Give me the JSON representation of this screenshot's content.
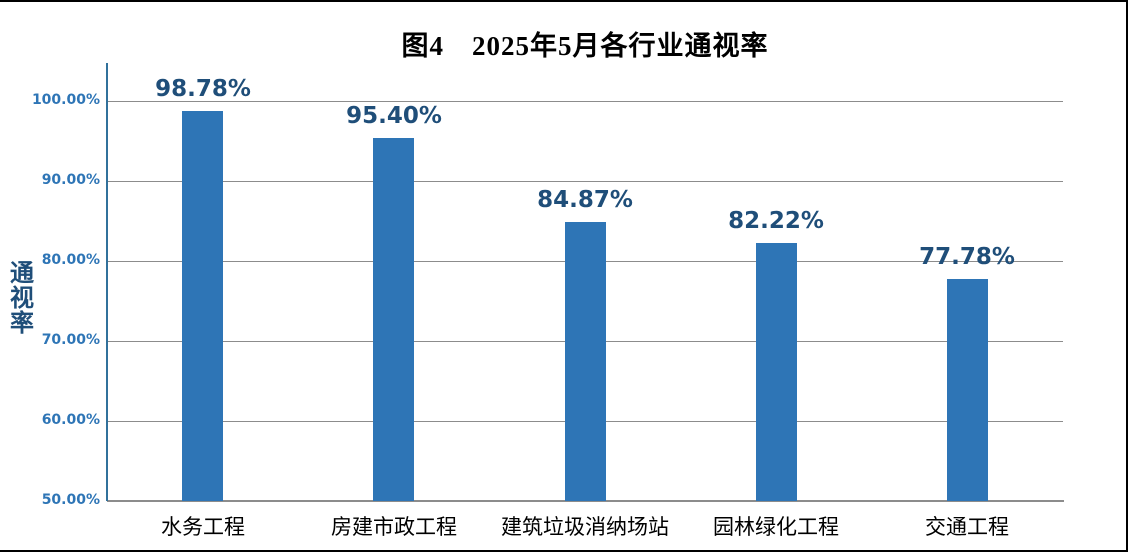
{
  "chart_title": "图4　2025年5月各行业通视率",
  "y_axis": {
    "label": "通视率",
    "ticks": [
      "100.00%",
      "90.00%",
      "80.00%",
      "70.00%",
      "60.00%",
      "50.00%"
    ]
  },
  "chart_data": {
    "type": "bar",
    "title": "图4　2025年5月各行业通视率",
    "categories": [
      "水务工程",
      "房建市政工程",
      "建筑垃圾消纳场站",
      "园林绿化工程",
      "交通工程"
    ],
    "values": [
      98.78,
      95.4,
      84.87,
      82.22,
      77.78
    ],
    "value_labels": [
      "98.78%",
      "95.40%",
      "84.87%",
      "82.22%",
      "77.78%"
    ],
    "xlabel": "",
    "ylabel": "通视率",
    "ylim": [
      50,
      100
    ],
    "ytick_step": 10,
    "grid": true,
    "legend_position": "none"
  },
  "colors": {
    "bar": "#2E75B6",
    "value_label": "#1F4E79",
    "tick_label": "#2E75B6",
    "axis_line": "#31719B",
    "gridline": "#8C8C8C",
    "title": "#000000",
    "category_label": "#000000",
    "border": "#000000"
  }
}
